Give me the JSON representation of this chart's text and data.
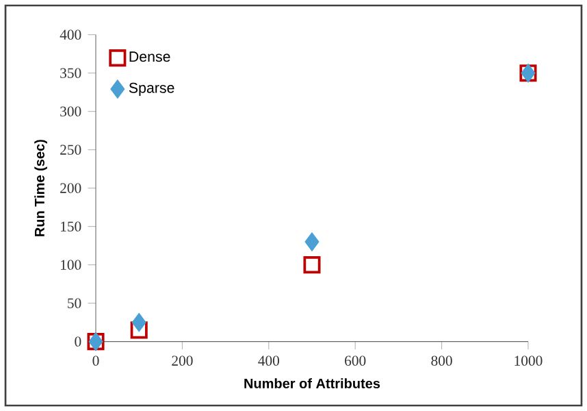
{
  "chart_data": {
    "type": "scatter",
    "xlabel": "Number of Attributes",
    "ylabel": "Run Time (sec)",
    "xlim": [
      0,
      1000
    ],
    "xticks": [
      0,
      200,
      400,
      600,
      800,
      1000
    ],
    "ylim": [
      0,
      400
    ],
    "yticks": [
      0,
      50,
      100,
      150,
      200,
      250,
      300,
      350,
      400
    ],
    "grid": false,
    "legend": "top left",
    "series": [
      {
        "name": "Dense",
        "color": "#c00000",
        "marker": "square",
        "x": [
          0,
          100,
          500,
          1000
        ],
        "values": [
          0,
          15,
          100,
          350
        ]
      },
      {
        "name": "Sparse",
        "color": "#4a9fd5",
        "marker": "diamond",
        "x": [
          0,
          100,
          500,
          1000
        ],
        "values": [
          0,
          25,
          130,
          350
        ]
      }
    ]
  }
}
